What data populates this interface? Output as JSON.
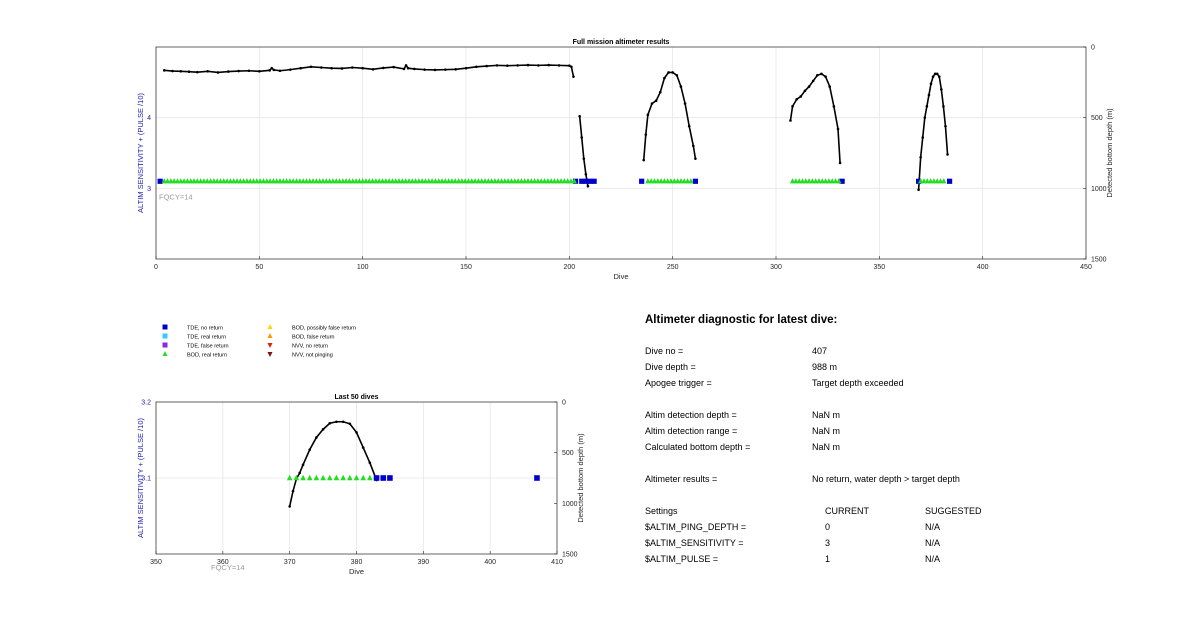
{
  "chart_data": [
    {
      "type": "scatter",
      "title": "Full mission altimeter results",
      "xlabel": "Dive",
      "ylabel_left": "ALTIM SENSITIVITY + (PULSE /10)",
      "ylabel_right": "Detected bottom depth (m)",
      "xlim": [
        0,
        450
      ],
      "ylim_left": [
        2,
        5
      ],
      "ylim_right": [
        1500,
        0
      ],
      "x_ticks": [
        "0",
        "50",
        "100",
        "150",
        "200",
        "250",
        "300",
        "350",
        "400",
        "450"
      ],
      "y_ticks_left": [
        "3",
        "4"
      ],
      "y_ticks_right": [
        "0",
        "500",
        "1000",
        "1500"
      ],
      "grid": true,
      "annotation": "FQCY=14",
      "series": [
        {
          "name": "TDE, no return",
          "color": "#0000cc",
          "marker": "square",
          "x": [
            2,
            203,
            206,
            208,
            210,
            212,
            235,
            261,
            332,
            369,
            384
          ],
          "y": [
            3.1,
            3.1,
            3.1,
            3.1,
            3.1,
            3.1,
            3.1,
            3.1,
            3.1,
            3.1,
            3.1
          ]
        },
        {
          "name": "BOD, real return",
          "color": "#22dd22",
          "marker": "triangle",
          "x_range": [
            4,
            203
          ],
          "y": 3.1
        },
        {
          "name": "BOD, real return (segment 2)",
          "color": "#22dd22",
          "marker": "triangle",
          "x_range": [
            238,
            260
          ],
          "y": 3.1
        },
        {
          "name": "BOD, real return (segment 3)",
          "color": "#22dd22",
          "marker": "triangle",
          "x_range": [
            308,
            331
          ],
          "y": 3.1
        },
        {
          "name": "BOD, real return (segment 4)",
          "color": "#22dd22",
          "marker": "triangle",
          "x_range": [
            370,
            382
          ],
          "y": 3.1
        }
      ],
      "depth_segments": [
        {
          "x": [
            4,
            8,
            12,
            16,
            20,
            25,
            30,
            35,
            40,
            45,
            50,
            55,
            56,
            57,
            60,
            65,
            70,
            75,
            80,
            85,
            90,
            95,
            100,
            105,
            110,
            115,
            120,
            121,
            122,
            125,
            130,
            135,
            140,
            145,
            150,
            155,
            160,
            165,
            170,
            175,
            180,
            185,
            190,
            195,
            200,
            201,
            202
          ],
          "depth": [
            165,
            170,
            172,
            175,
            178,
            172,
            180,
            174,
            170,
            168,
            172,
            165,
            150,
            162,
            168,
            160,
            150,
            140,
            145,
            150,
            152,
            145,
            150,
            158,
            148,
            142,
            155,
            130,
            150,
            155,
            160,
            162,
            160,
            158,
            150,
            140,
            135,
            130,
            132,
            130,
            128,
            130,
            128,
            130,
            132,
            140,
            210
          ]
        },
        {
          "x": [
            205,
            206,
            207,
            208,
            209
          ],
          "depth": [
            490,
            640,
            790,
            900,
            985
          ]
        },
        {
          "x": [
            236,
            237,
            238,
            240,
            242,
            244,
            246,
            248,
            250,
            252,
            254,
            256,
            258,
            260,
            261
          ],
          "depth": [
            800,
            620,
            480,
            400,
            380,
            320,
            220,
            180,
            180,
            200,
            280,
            400,
            560,
            700,
            790
          ]
        },
        {
          "x": [
            307,
            308,
            310,
            312,
            314,
            316,
            318,
            320,
            322,
            324,
            326,
            328,
            330,
            331
          ],
          "depth": [
            520,
            420,
            370,
            350,
            310,
            280,
            240,
            200,
            190,
            210,
            280,
            420,
            580,
            820
          ]
        },
        {
          "x": [
            369,
            370,
            371,
            372,
            373,
            374,
            375,
            376,
            377,
            378,
            379,
            380,
            381,
            382,
            383
          ],
          "depth": [
            1010,
            780,
            640,
            500,
            420,
            340,
            260,
            210,
            190,
            190,
            210,
            300,
            420,
            560,
            760
          ]
        }
      ]
    },
    {
      "type": "scatter",
      "title": "Last 50 dives",
      "xlabel": "Dive",
      "ylabel_left": "ALTIM SENSITIVITY + (PULSE /10)",
      "ylabel_right": "Detected bottom depth (m)",
      "xlim": [
        350,
        410
      ],
      "ylim_left": [
        3.0,
        3.2
      ],
      "ylim_right": [
        1500,
        0
      ],
      "x_ticks": [
        "350",
        "360",
        "370",
        "380",
        "390",
        "400",
        "410"
      ],
      "y_ticks_left": [
        "3.1",
        "3.2"
      ],
      "y_ticks_right": [
        "0",
        "500",
        "1000",
        "1500"
      ],
      "grid": true,
      "annotation": "FQCY=14",
      "series": [
        {
          "name": "BOD, real return",
          "color": "#22dd22",
          "marker": "triangle",
          "x": [
            370,
            371,
            372,
            373,
            374,
            375,
            376,
            377,
            378,
            379,
            380,
            381,
            382
          ],
          "y": 3.1
        },
        {
          "name": "TDE, no return",
          "color": "#0000cc",
          "marker": "square",
          "x": [
            383,
            384,
            385,
            407
          ],
          "y": 3.1
        }
      ],
      "depth_x": [
        370,
        370.5,
        371,
        371.5,
        372,
        373,
        374,
        375,
        376,
        377,
        378,
        379,
        380,
        381,
        382,
        383
      ],
      "depth": [
        1030,
        880,
        760,
        700,
        620,
        470,
        350,
        270,
        210,
        195,
        195,
        215,
        300,
        450,
        600,
        770
      ]
    }
  ],
  "legend": [
    {
      "label": "TDE, no return",
      "color": "#0000cc",
      "marker": "square"
    },
    {
      "label": "TDE, real return",
      "color": "#33ccff",
      "marker": "square"
    },
    {
      "label": "TDE, false return",
      "color": "#8a2be2",
      "marker": "square"
    },
    {
      "label": "BOD, real return",
      "color": "#22dd22",
      "marker": "triangle"
    },
    {
      "label": "BOD, possibly false return",
      "color": "#ffd700",
      "marker": "triangle"
    },
    {
      "label": "BOD, false return",
      "color": "#ff9900",
      "marker": "triangle"
    },
    {
      "label": "NVV, no return",
      "color": "#dd2200",
      "marker": "triangle-down"
    },
    {
      "label": "NVV, not pinging",
      "color": "#7a1010",
      "marker": "triangle-down"
    }
  ],
  "diagnostic": {
    "title": "Altimeter diagnostic for latest dive:",
    "rows": [
      {
        "label": "Dive no =",
        "value": "407"
      },
      {
        "label": "Dive depth =",
        "value": "988 m"
      },
      {
        "label": "Apogee trigger =",
        "value": "Target depth exceeded"
      },
      {
        "label": "Altim detection depth =",
        "value": "NaN m"
      },
      {
        "label": "Altim detection range =",
        "value": "NaN m"
      },
      {
        "label": "Calculated bottom depth =",
        "value": "NaN m"
      },
      {
        "label": "Altimeter results =",
        "value": "No return, water depth > target depth"
      }
    ],
    "settings": {
      "header": [
        "Settings",
        "CURRENT",
        "SUGGESTED"
      ],
      "rows": [
        [
          "$ALTIM_PING_DEPTH =",
          "0",
          "N/A"
        ],
        [
          "$ALTIM_SENSITIVITY =",
          "3",
          "N/A"
        ],
        [
          "$ALTIM_PULSE =",
          "1",
          "N/A"
        ]
      ]
    }
  },
  "colors": {
    "axis": "#262626",
    "grid": "#e6e6e6",
    "left_label": "#2020b0",
    "annotation": "#9a9a9a",
    "line": "#000000"
  }
}
